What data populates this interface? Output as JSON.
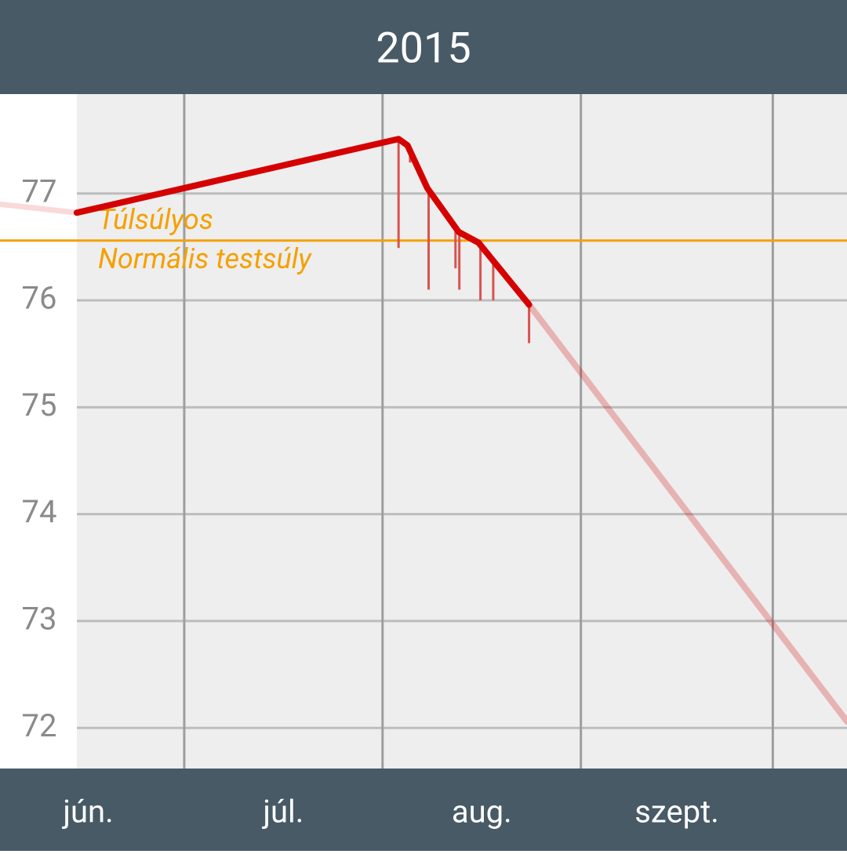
{
  "chart_data": {
    "type": "line",
    "title": "2015",
    "xlim": [
      153.2,
      285.6
    ],
    "ylim": [
      71.62,
      77.93
    ],
    "xticks": [
      {
        "value": 167,
        "label": "jún."
      },
      {
        "value": 197.5,
        "label": "júl."
      },
      {
        "value": 228.5,
        "label": "aug."
      },
      {
        "value": 259,
        "label": "szept."
      }
    ],
    "xgrid": [
      182,
      213,
      244,
      274
    ],
    "yticks": [
      72,
      73,
      74,
      75,
      76,
      77
    ],
    "grid": true,
    "threshold": {
      "value": 76.56,
      "above_label": "Túlsúlyos",
      "below_label": "Normális testsúly",
      "color": "#f5a000"
    },
    "series": [
      {
        "color": "#d50000",
        "opacity": 0.15,
        "width": 7,
        "x": [
          153.2,
          165.2
        ],
        "values": [
          76.9,
          76.82
        ]
      },
      {
        "color": "#d50000",
        "opacity": 1,
        "width": 8,
        "x": [
          165.2,
          215.5,
          216.9,
          220.0,
          224.9,
          228.0,
          235.9
        ],
        "values": [
          76.82,
          77.51,
          77.45,
          77.05,
          76.64,
          76.54,
          75.96
        ]
      },
      {
        "color": "#d50000",
        "opacity": 0.25,
        "width": 8,
        "x": [
          235.9,
          285.6
        ],
        "values": [
          75.96,
          72.06
        ]
      }
    ],
    "measurements": {
      "color": "#d9534f",
      "x": [
        215.5,
        217.3,
        220.2,
        224.4,
        225.0,
        228.3,
        230.3,
        235.9
      ],
      "values": [
        76.49,
        77.29,
        76.1,
        76.3,
        76.1,
        76.0,
        76.0,
        75.6
      ]
    }
  }
}
